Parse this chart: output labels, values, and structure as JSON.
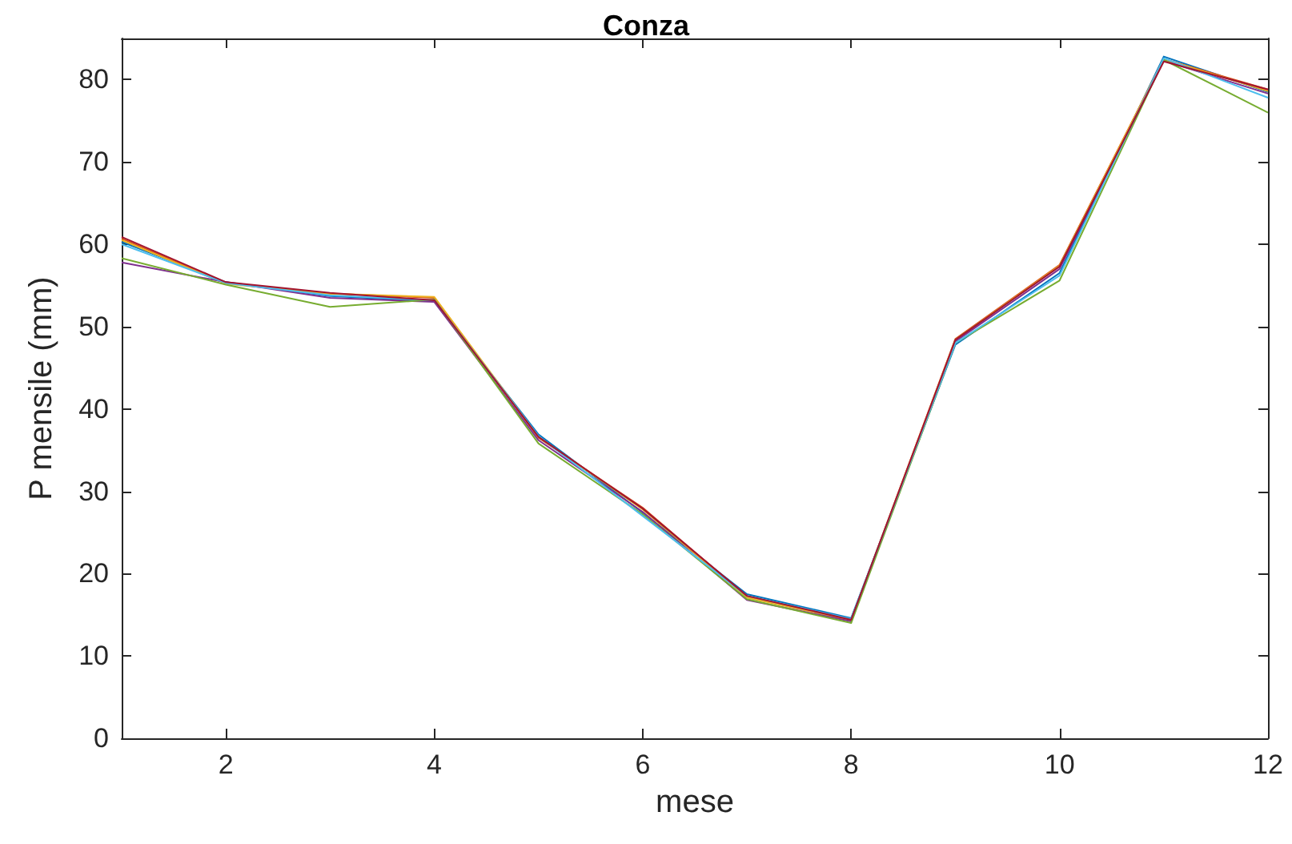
{
  "chart_data": {
    "type": "line",
    "title": "Conza",
    "xlabel": "mese",
    "ylabel": "P mensile (mm)",
    "x": [
      1,
      2,
      3,
      4,
      5,
      6,
      7,
      8,
      9,
      10,
      11,
      12
    ],
    "xlim": [
      1,
      12
    ],
    "xticks": [
      2,
      4,
      6,
      8,
      10,
      12
    ],
    "ylim": [
      0,
      85
    ],
    "yticks": [
      0,
      10,
      20,
      30,
      40,
      50,
      60,
      70,
      80
    ],
    "grid": false,
    "marker": "none",
    "line_style": "solid",
    "series": [
      {
        "color": "#0072bd",
        "values": [
          60.3,
          55.4,
          53.7,
          53.1,
          36.9,
          27.4,
          17.5,
          14.6,
          47.8,
          56.5,
          82.8,
          78.5
        ]
      },
      {
        "color": "#d95319",
        "values": [
          60.7,
          55.3,
          54.0,
          53.5,
          36.5,
          28.0,
          17.2,
          14.4,
          48.5,
          57.5,
          82.5,
          78.8
        ]
      },
      {
        "color": "#edb120",
        "values": [
          60.5,
          55.2,
          54.0,
          53.6,
          36.6,
          27.8,
          17.1,
          14.3,
          48.4,
          57.4,
          82.5,
          78.6
        ]
      },
      {
        "color": "#7e2f8e",
        "values": [
          57.8,
          55.4,
          53.5,
          53.0,
          36.2,
          27.5,
          16.8,
          14.2,
          48.2,
          57.0,
          82.3,
          78.3
        ]
      },
      {
        "color": "#77ac30",
        "values": [
          58.3,
          55.1,
          52.4,
          53.3,
          35.8,
          27.2,
          16.9,
          14.0,
          48.0,
          55.6,
          82.4,
          76.0
        ]
      },
      {
        "color": "#4dbeee",
        "values": [
          60.0,
          55.3,
          53.8,
          53.2,
          36.7,
          27.0,
          17.3,
          14.5,
          48.0,
          56.2,
          82.6,
          77.8
        ]
      },
      {
        "color": "#a2142f",
        "values": [
          60.9,
          55.4,
          54.1,
          53.2,
          36.6,
          27.9,
          17.3,
          14.4,
          48.4,
          57.3,
          82.2,
          78.8
        ]
      }
    ]
  }
}
